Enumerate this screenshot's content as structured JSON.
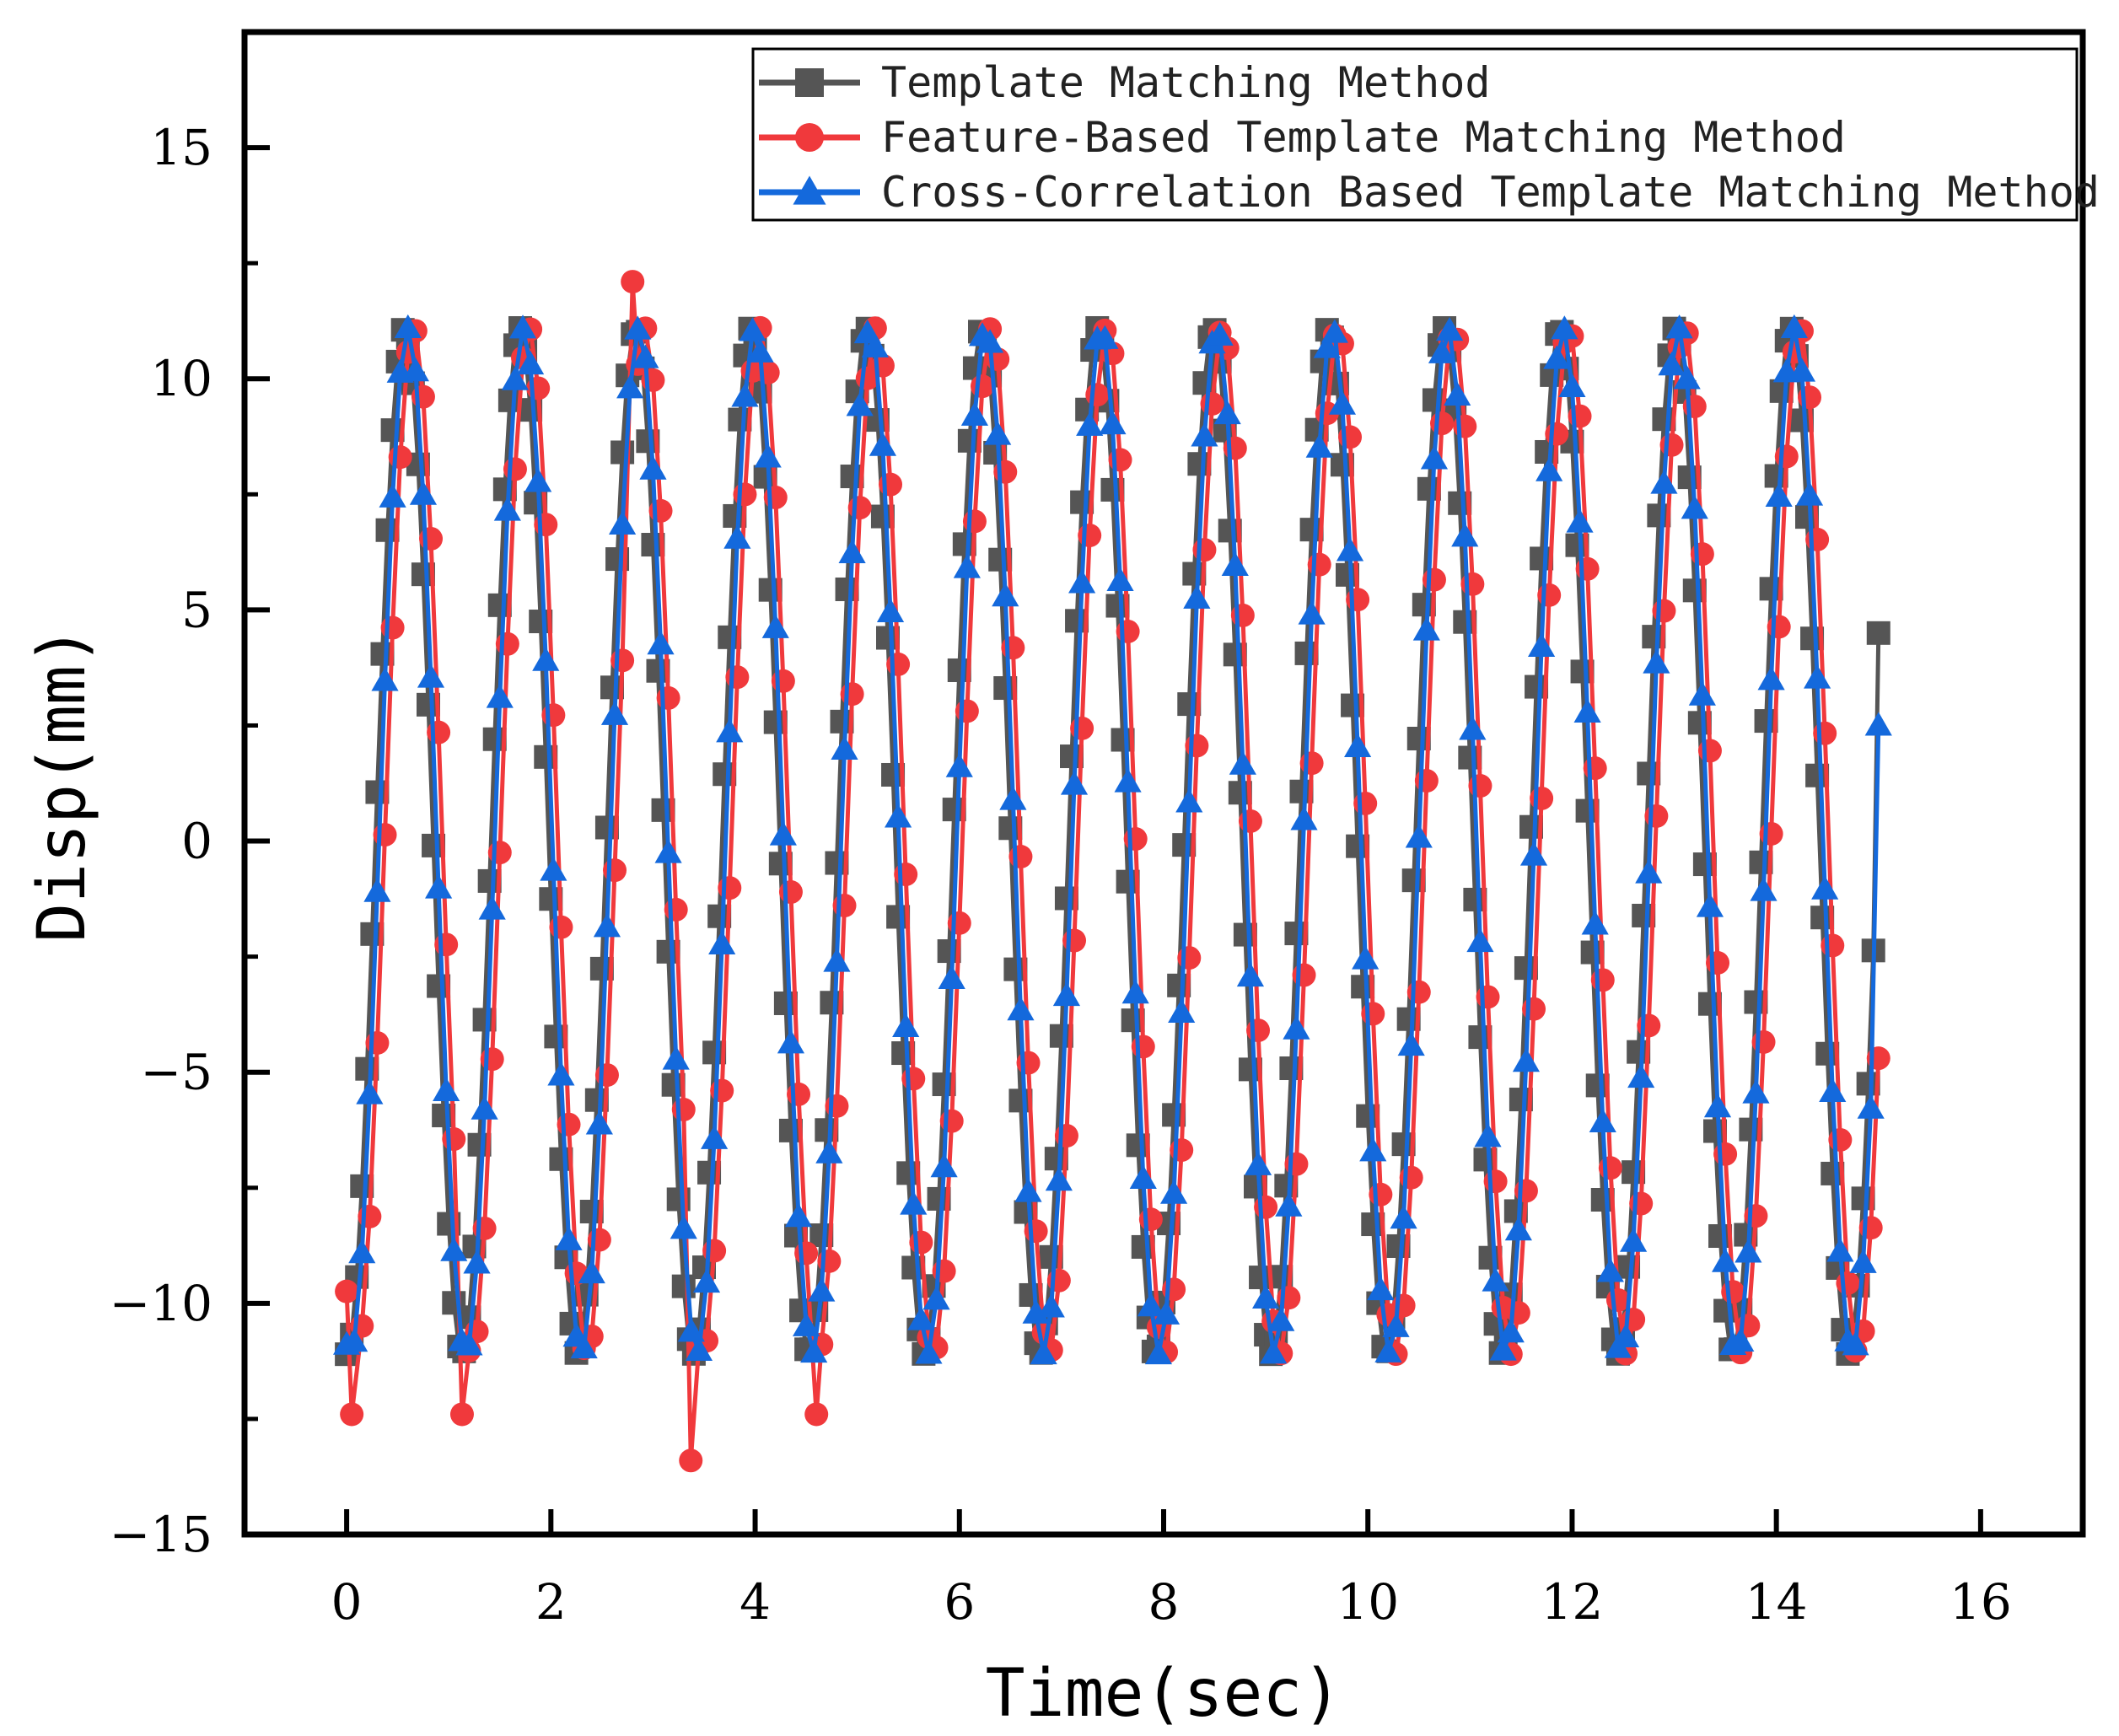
{
  "chart_data": {
    "type": "line",
    "title": "",
    "xlabel": "Time(sec)",
    "ylabel": "Disp(mm)",
    "xlim": [
      -1,
      17
    ],
    "ylim": [
      -15,
      17.5
    ],
    "xticks": [
      0,
      2,
      4,
      6,
      8,
      10,
      12,
      14,
      16
    ],
    "yticks": [
      -15,
      -10,
      -5,
      0,
      5,
      10,
      15
    ],
    "grid": false,
    "legend_position": "top-right",
    "frequency_hz": 0.884,
    "series": [
      {
        "name": "Template Matching Method",
        "color": "#555555",
        "marker": "square",
        "amplitude": 11.1,
        "phase_offset_sec": 0.0,
        "x_start": 0.0,
        "x_end": 15.0,
        "step": 0.05,
        "end_value": 4.5
      },
      {
        "name": "Feature-Based Template Matching Method",
        "color": "#f0393c",
        "marker": "circle",
        "amplitude": 11.1,
        "phase_offset_sec": 0.09,
        "x_start": 0.0,
        "x_end": 15.0,
        "step": 0.075,
        "annotations": [
          {
            "x": 2.8,
            "y": 12.1
          },
          {
            "x": 3.37,
            "y": -13.4
          },
          {
            "x": 4.6,
            "y": -12.4
          },
          {
            "x": 0.05,
            "y": -12.4
          },
          {
            "x": 1.13,
            "y": -12.4
          }
        ]
      },
      {
        "name": "Cross-Correlation Based Template Matching Method",
        "color": "#1469dc",
        "marker": "triangle",
        "amplitude": 11.1,
        "phase_offset_sec": 0.035,
        "x_start": 0.0,
        "x_end": 15.0,
        "step": 0.075,
        "end_value": 2.5
      }
    ]
  }
}
